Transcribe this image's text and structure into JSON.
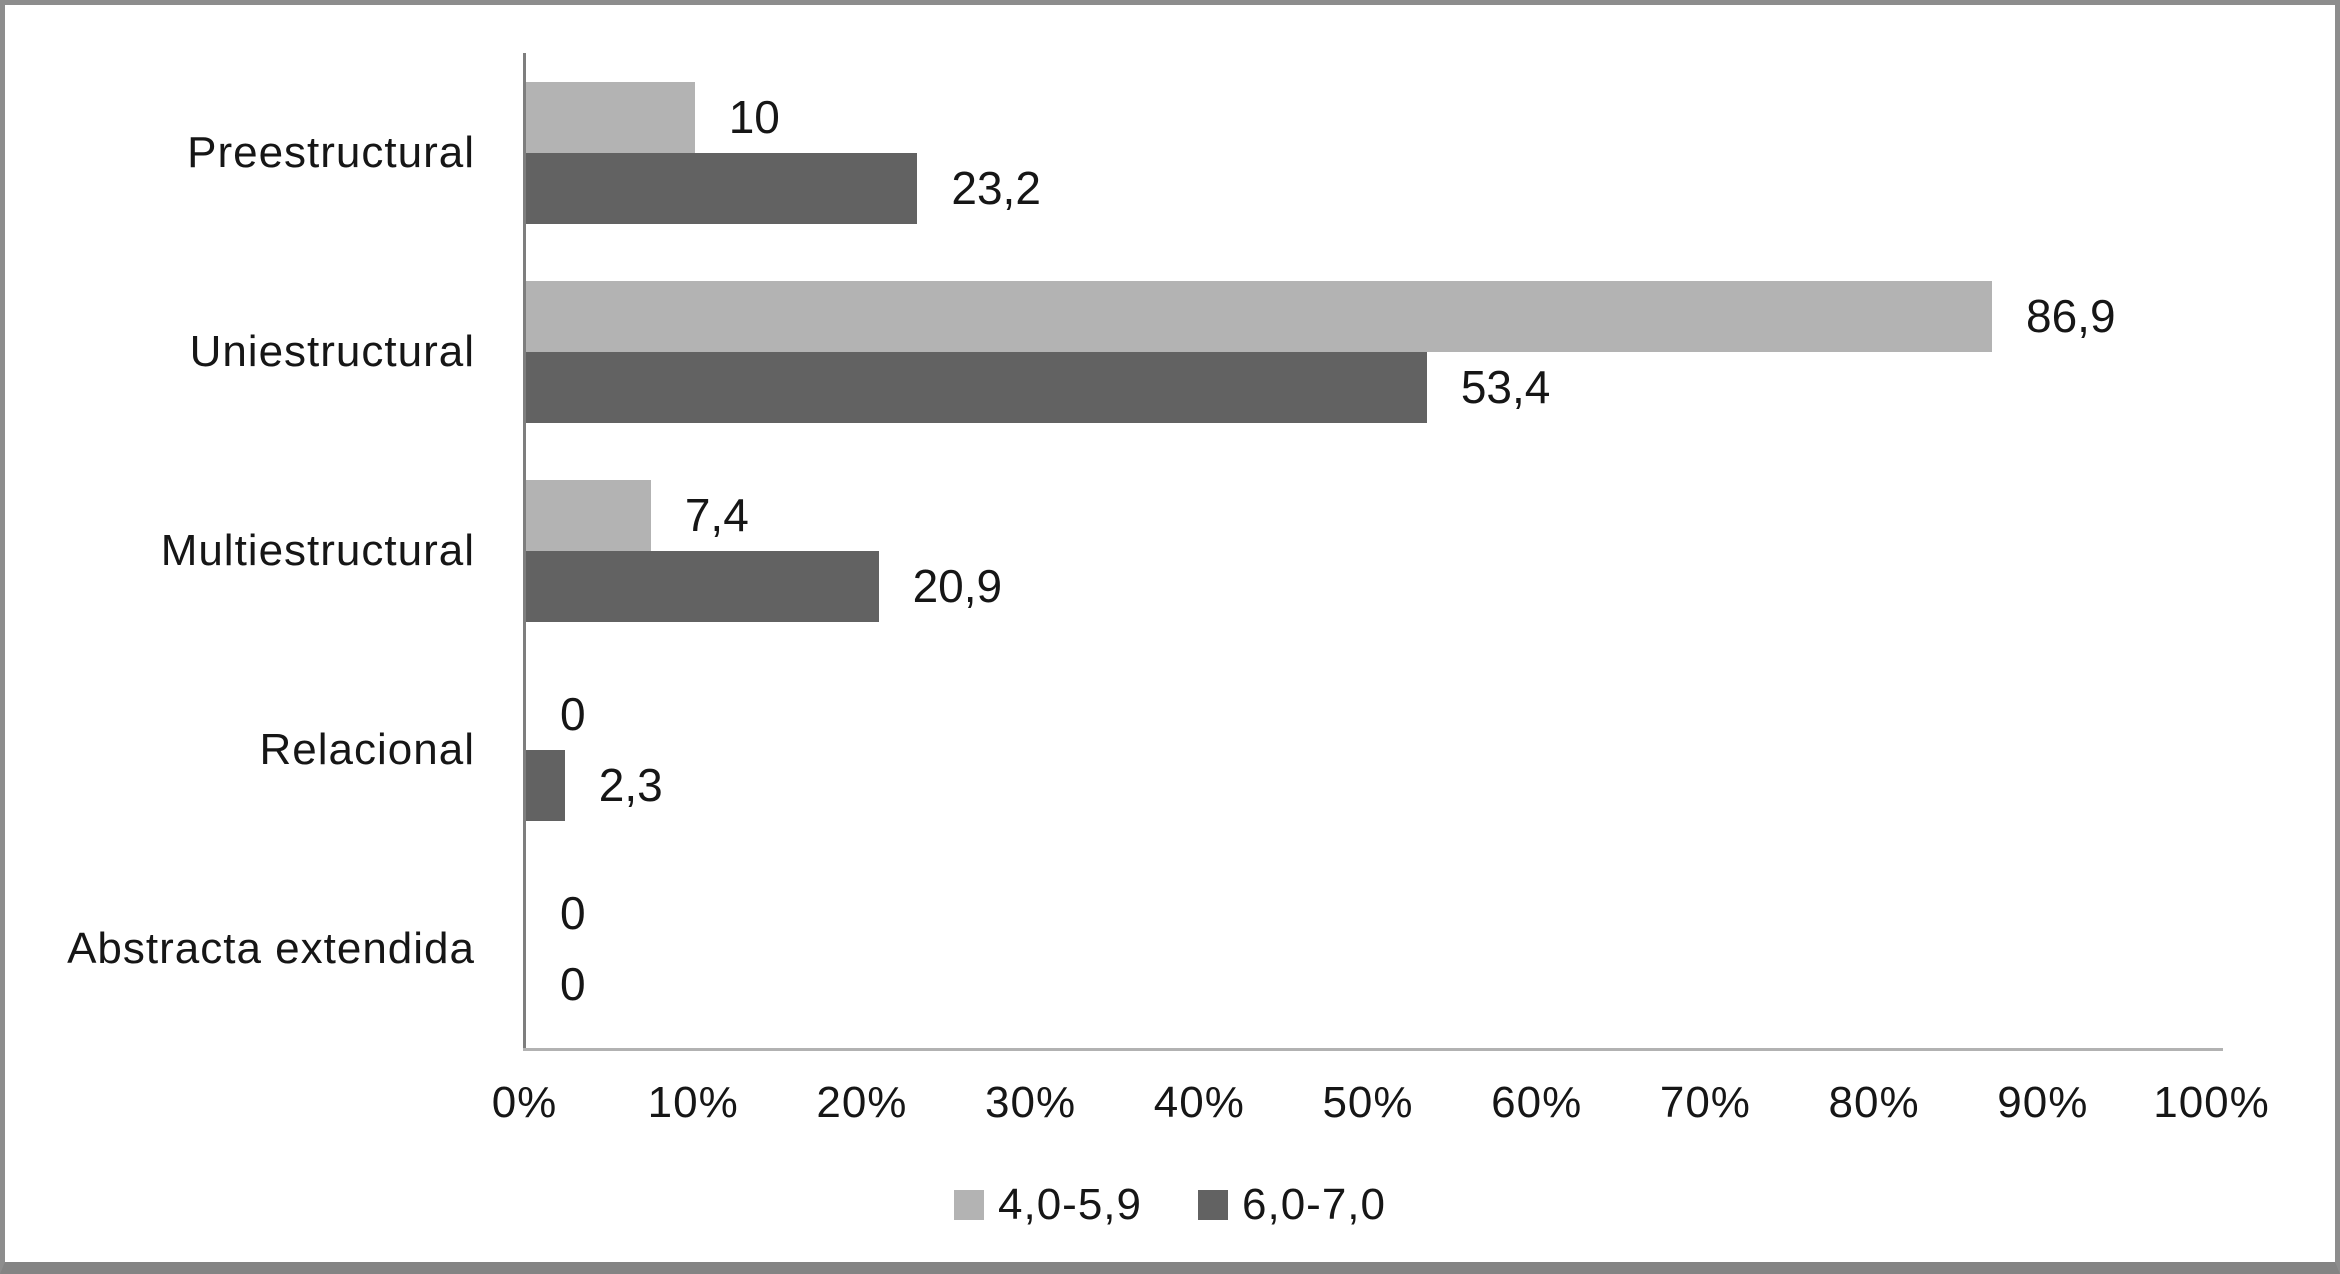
{
  "chart_data": {
    "type": "bar",
    "orientation": "horizontal",
    "title": "",
    "xlabel": "",
    "ylabel": "",
    "categories": [
      "Preestructural",
      "Uniestructural",
      "Multiestructural",
      "Relacional",
      "Abstracta extendida"
    ],
    "series": [
      {
        "name": "4,0-5,9",
        "color": "#b3b3b3",
        "values": [
          10,
          86.9,
          7.4,
          0,
          0
        ],
        "value_labels": [
          "10",
          "86,9",
          "7,4",
          "0",
          "0"
        ]
      },
      {
        "name": "6,0-7,0",
        "color": "#626262",
        "values": [
          23.2,
          53.4,
          20.9,
          2.3,
          0
        ],
        "value_labels": [
          "23,2",
          "53,4",
          "20,9",
          "2,3",
          "0"
        ]
      }
    ],
    "x_ticks": [
      "0%",
      "10%",
      "20%",
      "30%",
      "40%",
      "50%",
      "60%",
      "70%",
      "80%",
      "90%",
      "100%"
    ],
    "xlim": [
      0,
      100
    ],
    "grid": false,
    "data_labels": true,
    "legend_position": "bottom"
  }
}
